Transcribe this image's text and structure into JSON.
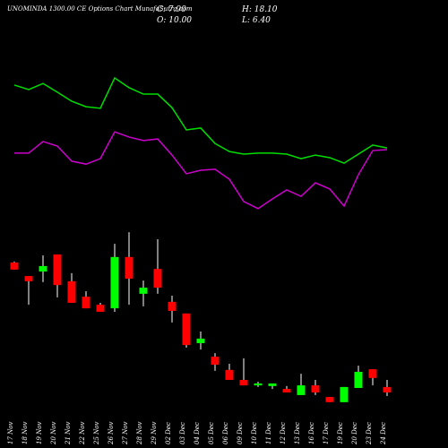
{
  "chart_data": {
    "type": "candlestick",
    "title": "UNOMINDA 1300.00 CE Options  Chart MunafaSutra.com",
    "info": [
      "C: 7.90",
      "H: 18.10",
      "O: 10.00",
      "L: 6.40"
    ],
    "categories": [
      "17 Nov",
      "18 Nov",
      "19 Nov",
      "20 Nov",
      "21 Nov",
      "22 Nov",
      "25 Nov",
      "26 Nov",
      "27 Nov",
      "28 Nov",
      "29 Nov",
      "02 Dec",
      "03 Dec",
      "04 Dec",
      "05 Dec",
      "06 Dec",
      "09 Dec",
      "10 Dec",
      "11 Dec",
      "12 Dec",
      "13 Dec",
      "16 Dec",
      "17 Dec",
      "19 Dec",
      "20 Dec",
      "23 Dec",
      "24 Dec"
    ],
    "open": [
      46.4,
      42.2,
      43.6,
      48.9,
      40.6,
      35.8,
      33.3,
      32.2,
      48.1,
      36.7,
      44.4,
      34.2,
      30.6,
      21.4,
      17.2,
      13.1,
      10.0,
      8.3,
      8.1,
      7.2,
      5.3,
      8.3,
      4.7,
      3.1,
      7.5,
      13.3,
      7.8
    ],
    "high": [
      46.7,
      42.2,
      48.6,
      48.9,
      43.1,
      37.5,
      33.9,
      52.2,
      55.8,
      40.8,
      53.6,
      36.1,
      30.6,
      25.0,
      18.3,
      15.0,
      16.7,
      9.4,
      8.9,
      8.1,
      11.9,
      10.0,
      4.7,
      7.8,
      14.4,
      13.3,
      10.0
    ],
    "low": [
      44.2,
      33.3,
      40.3,
      35.6,
      33.9,
      32.2,
      31.1,
      31.1,
      33.3,
      32.8,
      36.7,
      27.8,
      20.0,
      19.4,
      12.8,
      10.0,
      8.3,
      7.8,
      7.2,
      6.1,
      5.3,
      5.3,
      3.1,
      3.1,
      7.5,
      8.3,
      5.0
    ],
    "close": [
      44.2,
      40.6,
      45.3,
      39.4,
      33.9,
      32.2,
      31.1,
      48.1,
      41.4,
      38.6,
      38.6,
      31.4,
      20.8,
      22.8,
      14.7,
      10.0,
      8.3,
      8.9,
      8.9,
      6.1,
      8.3,
      6.1,
      3.1,
      7.8,
      12.5,
      10.6,
      6.1
    ],
    "up_color": "#00ff00",
    "down_color": "#ff0000",
    "series": [
      {
        "color": "#00dd00",
        "values": [
          101.4,
          100,
          101.9,
          99.2,
          96.4,
          94.7,
          94.2,
          103.6,
          100.6,
          98.6,
          98.6,
          94.4,
          87.5,
          88.1,
          83.3,
          80.8,
          80,
          80.3,
          80.3,
          80,
          78.6,
          79.7,
          78.9,
          77.2,
          80,
          82.8,
          81.9
        ]
      },
      {
        "color": "#cc00cc",
        "values": [
          80.3,
          80.3,
          83.9,
          82.5,
          77.8,
          76.9,
          78.6,
          86.9,
          85.3,
          84.2,
          84.7,
          79.7,
          73.9,
          75,
          75.3,
          72.2,
          65.3,
          63.1,
          66.1,
          68.9,
          66.9,
          71.1,
          69.2,
          63.9,
          73.6,
          81.1,
          81.4
        ]
      }
    ],
    "ylim": [
      0,
      120
    ]
  }
}
